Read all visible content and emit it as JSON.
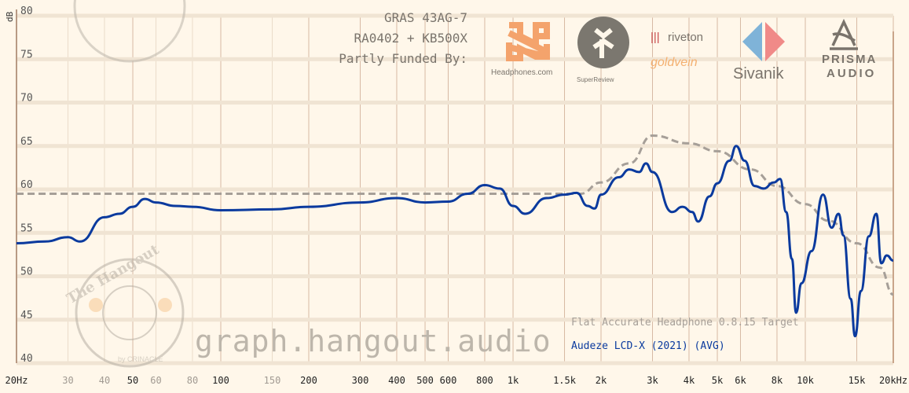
{
  "header": {
    "rig_lines": [
      "GRAS 43AG-7",
      "RA0402 + KB500X",
      "Partly Funded By:"
    ],
    "sponsors": [
      "Headphones.com",
      "SuperReview",
      "riveton",
      "goldvein",
      "Sivanik",
      "PRISMA AUDIO"
    ]
  },
  "watermark": {
    "text": "graph.hangout.audio",
    "logo_text": "The Hangout",
    "logo_sub": "by CRINACLE"
  },
  "colors": {
    "background": "#fff7ea",
    "measurement": "#0a3a9e",
    "target": "#a69f98",
    "grid": "#eadcca",
    "grid_major": "#d7b9a3"
  },
  "chart_data": {
    "type": "line",
    "xscale": "log",
    "xlim": [
      20,
      20000
    ],
    "ylim": [
      40,
      80
    ],
    "ylabel": "dB",
    "yticks": [
      40,
      45,
      50,
      55,
      60,
      65,
      70,
      75,
      80
    ],
    "xticks": [
      {
        "v": 20,
        "label": "20Hz",
        "major": true
      },
      {
        "v": 30,
        "label": "30",
        "major": false
      },
      {
        "v": 40,
        "label": "40",
        "major": false
      },
      {
        "v": 50,
        "label": "50",
        "major": true
      },
      {
        "v": 60,
        "label": "60",
        "major": false
      },
      {
        "v": 80,
        "label": "80",
        "major": false
      },
      {
        "v": 100,
        "label": "100",
        "major": true
      },
      {
        "v": 150,
        "label": "150",
        "major": false
      },
      {
        "v": 200,
        "label": "200",
        "major": true
      },
      {
        "v": 300,
        "label": "300",
        "major": true
      },
      {
        "v": 400,
        "label": "400",
        "major": true
      },
      {
        "v": 500,
        "label": "500",
        "major": true
      },
      {
        "v": 600,
        "label": "600",
        "major": true
      },
      {
        "v": 800,
        "label": "800",
        "major": true
      },
      {
        "v": 1000,
        "label": "1k",
        "major": true
      },
      {
        "v": 1500,
        "label": "1.5k",
        "major": true
      },
      {
        "v": 2000,
        "label": "2k",
        "major": true
      },
      {
        "v": 3000,
        "label": "3k",
        "major": true
      },
      {
        "v": 4000,
        "label": "4k",
        "major": true
      },
      {
        "v": 5000,
        "label": "5k",
        "major": true
      },
      {
        "v": 6000,
        "label": "6k",
        "major": true
      },
      {
        "v": 8000,
        "label": "8k",
        "major": true
      },
      {
        "v": 10000,
        "label": "10k",
        "major": true
      },
      {
        "v": 15000,
        "label": "15k",
        "major": true
      },
      {
        "v": 20000,
        "label": "20kHz",
        "major": true
      }
    ],
    "grid": true,
    "legend_placement": "bottom-right",
    "series": [
      {
        "name": "Flat Accurate Headphone 0.8.15 Target",
        "style": "dashed",
        "x": [
          20,
          1700,
          2000,
          2500,
          3000,
          4000,
          5000,
          6500,
          8000,
          10000,
          12000,
          15000,
          18000,
          20000
        ],
        "y": [
          59.5,
          59.5,
          60.8,
          63.0,
          66.2,
          65.3,
          64.4,
          62.3,
          60.4,
          58.3,
          56.4,
          53.8,
          51.0,
          47.9
        ]
      },
      {
        "name": "Audeze LCD-X (2021) (AVG)",
        "style": "solid",
        "x": [
          20,
          25,
          30,
          33,
          40,
          45,
          50,
          55,
          60,
          70,
          80,
          100,
          150,
          200,
          300,
          400,
          500,
          600,
          700,
          800,
          900,
          1000,
          1100,
          1300,
          1500,
          1650,
          1800,
          1900,
          2000,
          2300,
          2500,
          2700,
          2850,
          3000,
          3500,
          3800,
          4100,
          4300,
          4700,
          5000,
          5500,
          5800,
          6200,
          6700,
          7200,
          7800,
          8200,
          8600,
          9000,
          9300,
          9700,
          10500,
          11500,
          12300,
          13000,
          13500,
          14300,
          14800,
          15500,
          16500,
          17500,
          18200,
          19000,
          20000
        ],
        "y": [
          53.8,
          54.0,
          54.5,
          54.0,
          56.8,
          57.2,
          58.0,
          58.9,
          58.5,
          58.1,
          58.0,
          57.6,
          57.7,
          58.0,
          58.5,
          59.0,
          58.5,
          58.6,
          59.5,
          60.5,
          60.1,
          58.1,
          57.2,
          59.0,
          59.4,
          59.6,
          58.1,
          57.8,
          59.4,
          61.4,
          62.3,
          62.0,
          63.0,
          62.0,
          57.4,
          58.0,
          57.4,
          56.3,
          59.2,
          60.7,
          63.3,
          65.0,
          63.3,
          60.4,
          60.1,
          60.8,
          61.2,
          57.4,
          52.0,
          45.8,
          49.2,
          52.9,
          59.4,
          55.6,
          57.2,
          54.7,
          47.4,
          43.1,
          48.3,
          54.6,
          57.2,
          51.5,
          52.4,
          51.8
        ]
      }
    ]
  }
}
